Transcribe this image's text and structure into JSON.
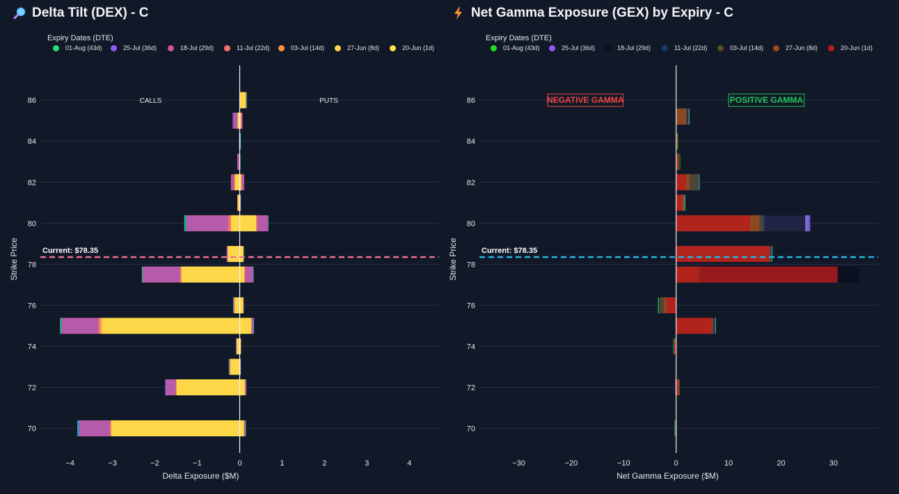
{
  "icons": {
    "left_title_icon": "magnifier-icon",
    "right_title_icon": "lightning-icon"
  },
  "chart_data": [
    {
      "type": "bar",
      "title": "Delta Tilt (DEX) - C",
      "xlabel": "Delta Exposure ($M)",
      "ylabel": "Strike Price",
      "xlim": [
        -4.7,
        4.7
      ],
      "ylim": [
        68.8,
        87.7
      ],
      "xticks": [
        -4,
        -3,
        -2,
        -1,
        0,
        1,
        2,
        3,
        4
      ],
      "yticks": [
        70,
        72,
        74,
        76,
        78,
        80,
        82,
        84,
        86
      ],
      "legend_title": "Expiry Dates (DTE)",
      "legend_position": "top",
      "grid": true,
      "current_price": 78.35,
      "current_label": "Current: $78.35",
      "current_line_color": "#f0708f",
      "annotations": [
        {
          "text": "CALLS",
          "x": -2.1,
          "y": 86
        },
        {
          "text": "PUTS",
          "x": 2.1,
          "y": 86
        }
      ],
      "series": [
        {
          "name": "01-Aug (43d)",
          "color": "#22e07a",
          "bars": [
            [
              70,
              -3.82,
              0.14
            ],
            [
              72,
              -1.75,
              0.15
            ],
            [
              73,
              -0.25,
              0.02
            ],
            [
              74,
              -0.08,
              0.02
            ],
            [
              75,
              -4.23,
              0.33
            ],
            [
              76,
              -0.15,
              0.09
            ],
            [
              77.5,
              -2.3,
              0.32
            ],
            [
              78.5,
              -0.3,
              0.09
            ],
            [
              80,
              -1.3,
              0.67
            ],
            [
              81,
              -0.05,
              0.02
            ],
            [
              82,
              -0.15,
              0.09
            ],
            [
              83,
              -0.05,
              0.01
            ],
            [
              84,
              -0.01,
              0.02
            ],
            [
              85,
              -0.14,
              0.05
            ],
            [
              86,
              0,
              0.16
            ]
          ]
        },
        {
          "name": "25-Jul (36d)",
          "color": "#8b5cf6",
          "bars": [
            [
              70,
              -3.8,
              0.13
            ],
            [
              72,
              -1.75,
              0.15
            ],
            [
              73,
              -0.24,
              0.02
            ],
            [
              74,
              -0.08,
              0.02
            ],
            [
              75,
              -4.2,
              0.32
            ],
            [
              76,
              -0.14,
              0.09
            ],
            [
              77.5,
              -2.28,
              0.31
            ],
            [
              78.5,
              -0.3,
              0.08
            ],
            [
              80,
              -1.26,
              0.66
            ],
            [
              81,
              -0.05,
              0.02
            ],
            [
              82,
              -0.2,
              0.1
            ],
            [
              83,
              -0.05,
              0
            ],
            [
              84,
              -0.01,
              0.01
            ],
            [
              85,
              -0.16,
              0.06
            ],
            [
              86,
              0,
              0.15
            ]
          ]
        },
        {
          "name": "18-Jul (29d)",
          "color": "#d1539b",
          "bars": [
            [
              70,
              -3.75,
              0.12
            ],
            [
              72,
              -1.73,
              0.14
            ],
            [
              73,
              -0.23,
              0.01
            ],
            [
              74,
              -0.07,
              0.02
            ],
            [
              75,
              -4.18,
              0.3
            ],
            [
              76,
              -0.13,
              0.08
            ],
            [
              77.5,
              -2.27,
              0.3
            ],
            [
              78.5,
              -0.3,
              0.08
            ],
            [
              80,
              -1.23,
              0.65
            ],
            [
              81,
              -0.05,
              0.01
            ],
            [
              82,
              -0.2,
              0.1
            ],
            [
              83,
              -0.05,
              0
            ],
            [
              84,
              0,
              0
            ],
            [
              85,
              -0.14,
              0.06
            ],
            [
              86,
              0,
              0.15
            ]
          ]
        },
        {
          "name": "11-Jul (22d)",
          "color": "#f87171",
          "bars": [
            [
              70,
              -3.05,
              0.1
            ],
            [
              72,
              -1.5,
              0.12
            ],
            [
              73,
              -0.23,
              0.01
            ],
            [
              74,
              -0.07,
              0.02
            ],
            [
              75,
              -3.32,
              0.28
            ],
            [
              76,
              -0.12,
              0.08
            ],
            [
              77.5,
              -1.4,
              0.12
            ],
            [
              78.5,
              -0.28,
              0.08
            ],
            [
              80,
              -0.27,
              0.35
            ],
            [
              81,
              -0.05,
              0.01
            ],
            [
              82,
              -0.12,
              0.04
            ],
            [
              83,
              0,
              0
            ],
            [
              84,
              0,
              0
            ],
            [
              85,
              -0.05,
              0.03
            ],
            [
              86,
              0,
              0.14
            ]
          ]
        },
        {
          "name": "03-Jul (14d)",
          "color": "#fb923c",
          "bars": [
            [
              70,
              -3.04,
              0.1
            ],
            [
              72,
              -1.49,
              0.12
            ],
            [
              73,
              -0.22,
              0.01
            ],
            [
              74,
              -0.06,
              0.02
            ],
            [
              75,
              -3.3,
              0.27
            ],
            [
              76,
              -0.12,
              0.08
            ],
            [
              77.5,
              -1.38,
              0.11
            ],
            [
              78.5,
              -0.27,
              0.08
            ],
            [
              80,
              -0.22,
              0.4
            ],
            [
              81,
              -0.04,
              0.01
            ],
            [
              82,
              -0.12,
              0.03
            ],
            [
              83,
              0,
              0
            ],
            [
              84,
              0,
              0
            ],
            [
              85,
              -0.04,
              0.02
            ],
            [
              86,
              0,
              0.14
            ]
          ]
        },
        {
          "name": "27-Jun (8d)",
          "color": "#fcd34d",
          "bars": [
            [
              70,
              -3.02,
              0.09
            ],
            [
              72,
              -1.48,
              0.11
            ],
            [
              73,
              -0.21,
              0.01
            ],
            [
              74,
              -0.06,
              0.02
            ],
            [
              75,
              -3.26,
              0.26
            ],
            [
              76,
              -0.11,
              0.07
            ],
            [
              77.5,
              -1.37,
              0.1
            ],
            [
              78.5,
              -0.27,
              0.08
            ],
            [
              80,
              -0.2,
              0.38
            ],
            [
              81,
              -0.04,
              0.01
            ],
            [
              82,
              -0.1,
              0.03
            ],
            [
              83,
              0,
              0
            ],
            [
              84,
              0,
              0
            ],
            [
              85,
              -0.04,
              0.02
            ],
            [
              86,
              0,
              0.13
            ]
          ]
        },
        {
          "name": "20-Jun (1d)",
          "color": "#fde047",
          "bars": [
            [
              70,
              -3.0,
              0.08
            ],
            [
              72,
              -1.47,
              0.1
            ],
            [
              73,
              -0.2,
              0.01
            ],
            [
              74,
              -0.05,
              0.01
            ],
            [
              75,
              -3.22,
              0.25
            ],
            [
              76,
              -0.1,
              0.06
            ],
            [
              77.5,
              -1.35,
              0.1
            ],
            [
              78.5,
              -0.26,
              0.07
            ],
            [
              80,
              -0.18,
              0.37
            ],
            [
              81,
              -0.03,
              0.01
            ],
            [
              82,
              -0.1,
              0.02
            ],
            [
              83,
              0,
              0
            ],
            [
              84,
              0,
              0
            ],
            [
              85,
              -0.03,
              0.01
            ],
            [
              86,
              0,
              0.12
            ]
          ]
        }
      ]
    },
    {
      "type": "bar",
      "title": "Net Gamma Exposure (GEX) by Expiry - C",
      "xlabel": "Net Gamma Exposure ($M)",
      "ylabel": "Strike Price",
      "xlim": [
        -37.5,
        38.5
      ],
      "ylim": [
        68.8,
        87.7
      ],
      "xticks": [
        -30,
        -20,
        -10,
        0,
        10,
        20,
        30
      ],
      "yticks": [
        70,
        72,
        74,
        76,
        78,
        80,
        82,
        84,
        86
      ],
      "legend_title": "Expiry Dates (DTE)",
      "legend_position": "top",
      "grid": true,
      "current_price": 78.35,
      "current_label": "Current: $78.35",
      "current_line_color": "#22b8e8",
      "annotations": [
        {
          "text": "NEGATIVE GAMMA",
          "x": -17.3,
          "y": 86,
          "color": "#ef4444"
        },
        {
          "text": "POSITIVE GAMMA",
          "x": 17.2,
          "y": 86,
          "color": "#22c55e"
        }
      ],
      "series": [
        {
          "name": "01-Aug (43d)",
          "color": "#22dd22",
          "bars": [
            [
              70,
              -0.3
            ],
            [
              72,
              -0.1
            ],
            [
              74,
              -0.5
            ],
            [
              75,
              7.5
            ],
            [
              76,
              -3.4
            ],
            [
              77.5,
              4.6
            ],
            [
              78.5,
              18.3
            ],
            [
              80,
              25.2
            ],
            [
              81,
              1.7
            ],
            [
              82,
              4.4
            ],
            [
              83,
              0.7
            ],
            [
              84,
              0.3
            ],
            [
              85.2,
              2.5
            ]
          ]
        },
        {
          "name": "25-Jul (36d)",
          "color": "#8b5cf6",
          "bars": [
            [
              70,
              -0.2
            ],
            [
              72,
              -0.1
            ],
            [
              74,
              -0.4
            ],
            [
              75,
              7.4
            ],
            [
              76,
              -3.2
            ],
            [
              77.5,
              4.5
            ],
            [
              78.5,
              18.2
            ],
            [
              80,
              25.5
            ],
            [
              81,
              1.6
            ],
            [
              82,
              4.3
            ],
            [
              83,
              0.6
            ],
            [
              84,
              0.2
            ],
            [
              85.2,
              2.4
            ]
          ]
        },
        {
          "name": "18-Jul (29d)",
          "color": "#0b1020",
          "bars": [
            [
              70,
              -0.2
            ],
            [
              72,
              0.8
            ],
            [
              74,
              -0.4
            ],
            [
              75,
              7.3
            ],
            [
              76,
              -3.2
            ],
            [
              77.5,
              34.8
            ],
            [
              78.5,
              18.1
            ],
            [
              80,
              24.5
            ],
            [
              81,
              1.5
            ],
            [
              82,
              4.2
            ],
            [
              83,
              0.6
            ],
            [
              84,
              0.2
            ],
            [
              85.2,
              2.3
            ]
          ]
        },
        {
          "name": "11-Jul (22d)",
          "color": "#1e3a6b",
          "bars": [
            [
              70,
              -0.2
            ],
            [
              72,
              0.7
            ],
            [
              74,
              -0.4
            ],
            [
              75,
              7.2
            ],
            [
              76,
              -3.1
            ],
            [
              77.5,
              4.4
            ],
            [
              78.5,
              18
            ],
            [
              80,
              16.9
            ],
            [
              81,
              1.5
            ],
            [
              82,
              4.2
            ],
            [
              83,
              0.5
            ],
            [
              84,
              0.2
            ],
            [
              85.2,
              2.2
            ]
          ]
        },
        {
          "name": "03-Jul (14d)",
          "color": "#5c4a2a",
          "bars": [
            [
              70,
              -0.1
            ],
            [
              72,
              0.6
            ],
            [
              74,
              -0.3
            ],
            [
              75,
              7
            ],
            [
              76,
              -3
            ],
            [
              77.5,
              4.2
            ],
            [
              78.5,
              17.9
            ],
            [
              80,
              16.5
            ],
            [
              81,
              1.5
            ],
            [
              82,
              4
            ],
            [
              83,
              0.5
            ],
            [
              84,
              0.1
            ],
            [
              85.2,
              2
            ]
          ]
        },
        {
          "name": "27-Jun (8d)",
          "color": "#9a4a1c",
          "bars": [
            [
              70,
              0
            ],
            [
              72,
              0.5
            ],
            [
              74,
              -0.3
            ],
            [
              75,
              6.9
            ],
            [
              76,
              -2.3
            ],
            [
              77.5,
              3.8
            ],
            [
              78.5,
              17.8
            ],
            [
              80,
              15.8
            ],
            [
              81,
              1.4
            ],
            [
              82,
              2.5
            ],
            [
              83,
              0.4
            ],
            [
              84,
              0.1
            ],
            [
              85.2,
              1.8
            ]
          ]
        },
        {
          "name": "20-Jun (1d)",
          "color": "#b91c1c",
          "bars": [
            [
              70,
              0
            ],
            [
              72,
              0.3
            ],
            [
              74,
              -0.2
            ],
            [
              75,
              6.8
            ],
            [
              76,
              -1.7
            ],
            [
              77.5,
              30.7
            ],
            [
              78.5,
              17.7
            ],
            [
              80,
              14
            ],
            [
              81,
              1
            ],
            [
              82,
              1.8
            ],
            [
              83,
              0.2
            ],
            [
              84,
              0
            ],
            [
              85.2,
              0
            ]
          ]
        }
      ]
    }
  ]
}
